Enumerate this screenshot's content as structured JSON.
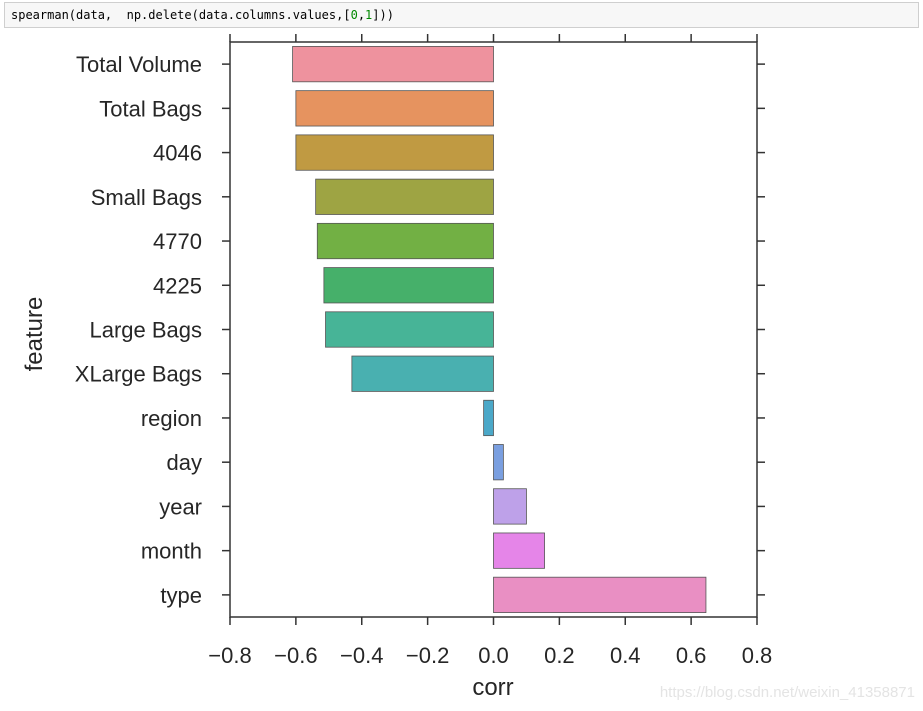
{
  "code_cell": {
    "prefix": "spearman(data,  np.delete(data.columns.values,",
    "arr_open": "[",
    "n0": "0",
    "comma": ",",
    "n1": "1",
    "arr_close": "]",
    "suffix": "))"
  },
  "chart_data": {
    "type": "bar",
    "orientation": "horizontal",
    "categories": [
      "Total Volume",
      "Total Bags",
      "4046",
      "Small Bags",
      "4770",
      "4225",
      "Large Bags",
      "XLarge Bags",
      "region",
      "day",
      "year",
      "month",
      "type"
    ],
    "values": [
      -0.61,
      -0.6,
      -0.6,
      -0.54,
      -0.535,
      -0.515,
      -0.51,
      -0.43,
      -0.03,
      0.03,
      0.1,
      0.155,
      0.645
    ],
    "colors": [
      "#ee929e",
      "#e6935f",
      "#c09a42",
      "#9ea443",
      "#72b044",
      "#46b06a",
      "#47b497",
      "#49b0b0",
      "#4ba8c8",
      "#7a9fe0",
      "#bea1e9",
      "#e585e8",
      "#e98fc3"
    ],
    "xlabel": "corr",
    "ylabel": "feature",
    "xlim": [
      -0.8,
      0.8
    ],
    "xticks": [
      -0.8,
      -0.6,
      -0.4,
      -0.2,
      0.0,
      0.2,
      0.4,
      0.6,
      0.8
    ],
    "xtick_labels": [
      "−0.8",
      "−0.6",
      "−0.4",
      "−0.2",
      "0.0",
      "0.2",
      "0.4",
      "0.6",
      "0.8"
    ]
  },
  "watermark": "https://blog.csdn.net/weixin_41358871"
}
